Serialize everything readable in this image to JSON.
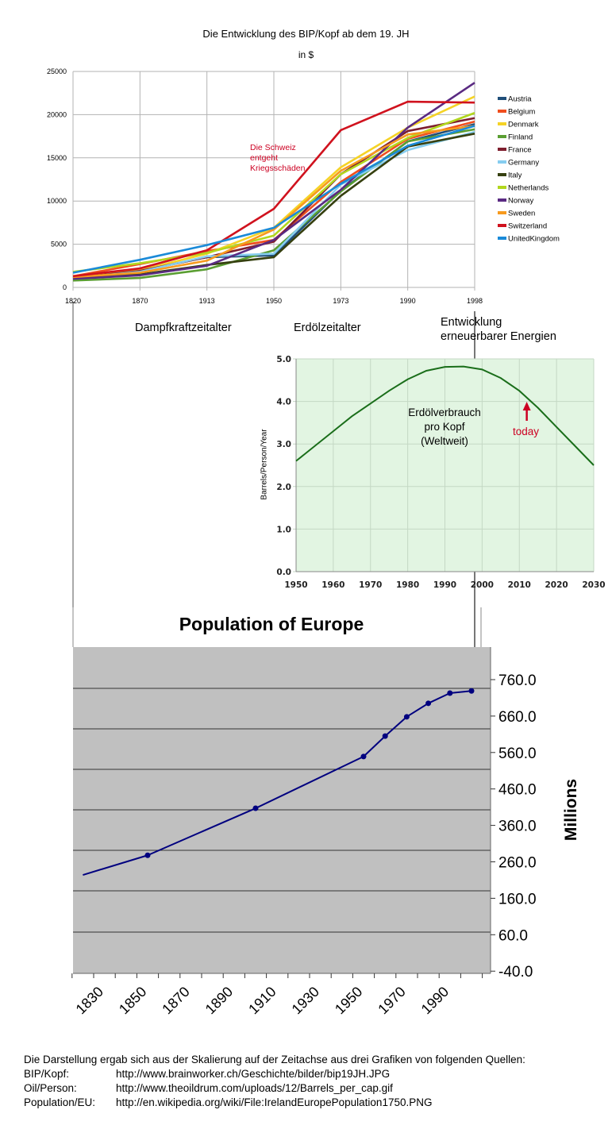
{
  "colors": {
    "oil_line": "#1a6e1a",
    "oil_bg": "#e2f5e2",
    "pop_line": "#00007f",
    "pop_bg": "#c0c0c0",
    "annotation_red": "#cc0022"
  },
  "eras": {
    "steam": "Dampfkraftzeitalter",
    "oil": "Erdölzeitalter",
    "renewable_line1": "Entwicklung",
    "renewable_line2": "erneuerbarer Energien"
  },
  "chart_data": [
    {
      "type": "line",
      "title": "Die Entwicklung des BIP/Kopf ab dem 19. JH",
      "subtitle": "in $",
      "xlabel": "",
      "ylabel": "",
      "categories": [
        "1820",
        "1870",
        "1913",
        "1950",
        "1973",
        "1990",
        "1998"
      ],
      "ylim": [
        0,
        25000
      ],
      "yticks": [
        "0",
        "5000",
        "10000",
        "15000",
        "20000",
        "25000"
      ],
      "grid": true,
      "legend_position": "right",
      "annotation": [
        "Die Schweiz",
        "entgeht",
        "Kriegsschäden"
      ],
      "series": [
        {
          "name": "Austria",
          "color": "#1f4e79",
          "values": [
            1200,
            1900,
            3500,
            3700,
            11200,
            16900,
            18900
          ]
        },
        {
          "name": "Belgium",
          "color": "#f04e1e",
          "values": [
            1300,
            2700,
            4200,
            5500,
            12200,
            17200,
            19200
          ]
        },
        {
          "name": "Denmark",
          "color": "#f5d326",
          "values": [
            1300,
            2000,
            3900,
            6900,
            13900,
            18500,
            22100
          ]
        },
        {
          "name": "Finland",
          "color": "#5a9e32",
          "values": [
            800,
            1100,
            2100,
            4300,
            11100,
            16900,
            18300
          ]
        },
        {
          "name": "France",
          "color": "#7e1e2e",
          "values": [
            1100,
            1900,
            3500,
            5300,
            13100,
            18100,
            19600
          ]
        },
        {
          "name": "Germany",
          "color": "#86cdf0",
          "values": [
            1100,
            1800,
            3600,
            3900,
            11900,
            15900,
            18000
          ]
        },
        {
          "name": "Italy",
          "color": "#364010",
          "values": [
            1100,
            1500,
            2600,
            3500,
            10600,
            16300,
            17800
          ]
        },
        {
          "name": "Netherlands",
          "color": "#b2d71e",
          "values": [
            1800,
            2800,
            4000,
            6000,
            13100,
            17300,
            20200
          ]
        },
        {
          "name": "Norway",
          "color": "#5a2a82",
          "values": [
            1000,
            1400,
            2500,
            5500,
            11300,
            18500,
            23700
          ]
        },
        {
          "name": "Sweden",
          "color": "#f79a1e",
          "values": [
            1200,
            1700,
            3100,
            6700,
            13500,
            17700,
            18700
          ]
        },
        {
          "name": "Switzerland",
          "color": "#d0121e",
          "values": [
            1300,
            2200,
            4300,
            9100,
            18200,
            21500,
            21400
          ]
        },
        {
          "name": "UnitedKingdom",
          "color": "#1a8ad8",
          "values": [
            1700,
            3200,
            4900,
            6900,
            12000,
            16400,
            18700
          ]
        }
      ]
    },
    {
      "type": "line",
      "title": "",
      "ylabel": "Barrels/Person/Year",
      "xlim": [
        1950,
        2030
      ],
      "ylim": [
        0,
        5
      ],
      "xticks": [
        "1950",
        "1960",
        "1970",
        "1980",
        "1990",
        "2000",
        "2010",
        "2020",
        "2030"
      ],
      "yticks": [
        "0.0",
        "1.0",
        "2.0",
        "3.0",
        "4.0",
        "5.0"
      ],
      "grid": true,
      "annotation": [
        "Erdölverbrauch",
        "pro Kopf",
        "(Weltweit)"
      ],
      "marker_label": "today",
      "marker_x": 2012,
      "x": [
        1950,
        1955,
        1960,
        1965,
        1970,
        1975,
        1980,
        1985,
        1990,
        1995,
        2000,
        2005,
        2010,
        2015,
        2020,
        2025,
        2030
      ],
      "y": [
        2.6,
        2.95,
        3.3,
        3.65,
        3.95,
        4.25,
        4.52,
        4.72,
        4.81,
        4.82,
        4.75,
        4.55,
        4.25,
        3.85,
        3.4,
        2.95,
        2.5
      ]
    },
    {
      "type": "line",
      "title": "Population of Europe",
      "ylabel": "Millions",
      "ylim": [
        -40,
        760
      ],
      "yticks": [
        "-40.0",
        "60.0",
        "160.0",
        "260.0",
        "360.0",
        "460.0",
        "560.0",
        "660.0",
        "760.0"
      ],
      "xticks": [
        "1830",
        "1850",
        "1870",
        "1890",
        "1910",
        "1930",
        "1950",
        "1970",
        "1990"
      ],
      "x": [
        1825,
        1855,
        1905,
        1955,
        1965,
        1975,
        1985,
        1995,
        2005
      ],
      "y": [
        224,
        278,
        407,
        549,
        605,
        658,
        695,
        723,
        729
      ],
      "markers": [
        false,
        true,
        true,
        true,
        true,
        true,
        true,
        true,
        true
      ]
    }
  ],
  "sources": {
    "intro": "Die Darstellung ergab sich aus der Skalierung auf der Zeitachse aus drei Grafiken von folgenden Quellen:",
    "rows": [
      {
        "label": "BIP/Kopf:",
        "url": "http://www.brainworker.ch/Geschichte/bilder/bip19JH.JPG"
      },
      {
        "label": "Oil/Person:",
        "url": "http://www.theoildrum.com/uploads/12/Barrels_per_cap.gif"
      },
      {
        "label": "Population/EU:",
        "url": "http://en.wikipedia.org/wiki/File:IrelandEuropePopulation1750.PNG"
      }
    ]
  }
}
